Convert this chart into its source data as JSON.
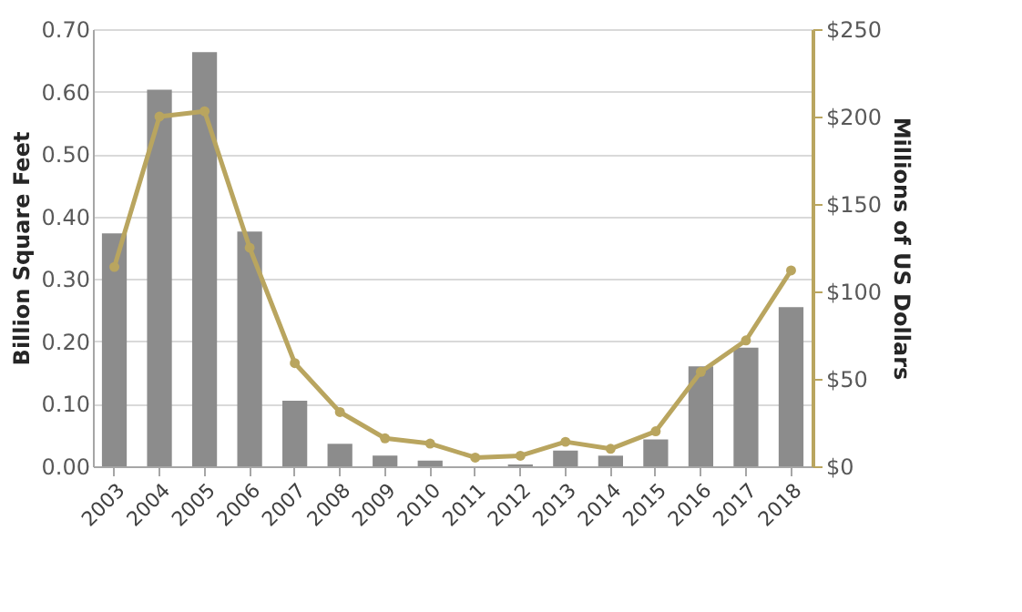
{
  "chart_data": {
    "type": "bar",
    "ylabel": "Billion Square Feet",
    "y2label": "Millions of US Dollars",
    "categories": [
      "2003",
      "2004",
      "2005",
      "2006",
      "2007",
      "2008",
      "2009",
      "2010",
      "2011",
      "2012",
      "2013",
      "2014",
      "2015",
      "2016",
      "2017",
      "2018"
    ],
    "series": [
      {
        "color": "#8c8c8c",
        "values": [
          0.373,
          0.603,
          0.663,
          0.376,
          0.105,
          0.036,
          0.017,
          0.009,
          null,
          0.003,
          0.025,
          0.017,
          0.043,
          0.16,
          0.19,
          0.255
        ]
      },
      {
        "type": "line",
        "axis": "y2",
        "color": "#b9a55f",
        "marker": "circle",
        "values": [
          114,
          200,
          203,
          125,
          59,
          31,
          16,
          13,
          5,
          6,
          14,
          10,
          20,
          54,
          72,
          112
        ]
      }
    ],
    "ylim": [
      0,
      0.7
    ],
    "yticks": [
      {
        "value": 0,
        "label": "0.00"
      },
      {
        "value": 0.1,
        "label": "0.10"
      },
      {
        "value": 0.2,
        "label": "0.20"
      },
      {
        "value": 0.3,
        "label": "0.30"
      },
      {
        "value": 0.4,
        "label": "0.40"
      },
      {
        "value": 0.5,
        "label": "0.50"
      },
      {
        "value": 0.6,
        "label": "0.60"
      },
      {
        "value": 0.7,
        "label": "0.70"
      }
    ],
    "y2lim": [
      0,
      250
    ],
    "y2ticks": [
      {
        "value": 0,
        "label": "$0"
      },
      {
        "value": 50,
        "label": "$50"
      },
      {
        "value": 100,
        "label": "$100"
      },
      {
        "value": 150,
        "label": "$150"
      },
      {
        "value": 200,
        "label": "$200"
      },
      {
        "value": 250,
        "label": "$250"
      }
    ],
    "grid": "y"
  }
}
